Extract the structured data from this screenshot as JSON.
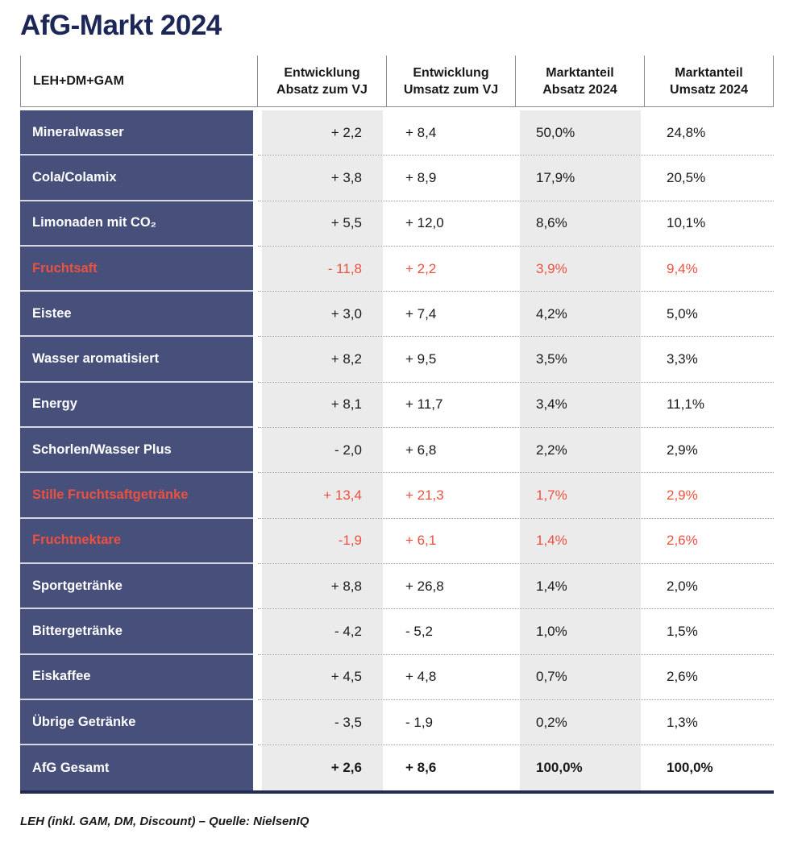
{
  "page_title": "AfG-Markt 2024",
  "source_note": "LEH (inkl. GAM, DM, Discount) – Quelle: NielsenIQ",
  "colors": {
    "title_navy": "#1d2757",
    "row_label_bg": "#474f7b",
    "highlight_red": "#ec5140",
    "stripe_gray": "#ebebeb",
    "text_dark": "#1a1a1a"
  },
  "headers": [
    {
      "lines": [
        "LEH+DM+GAM"
      ]
    },
    {
      "lines": [
        "Entwicklung",
        "Absatz zum VJ"
      ]
    },
    {
      "lines": [
        "Entwicklung",
        "Umsatz zum VJ"
      ]
    },
    {
      "lines": [
        "Marktanteil",
        "Absatz 2024"
      ]
    },
    {
      "lines": [
        "Marktanteil",
        "Umsatz 2024"
      ]
    }
  ],
  "rows": [
    {
      "label": "Mineralwasser",
      "absatz_vj": "+ 2,2",
      "umsatz_vj": "+ 8,4",
      "absatz_anteil": "50,0%",
      "umsatz_anteil": "24,8%",
      "highlight": false,
      "total": false
    },
    {
      "label": "Cola/Colamix",
      "absatz_vj": "+ 3,8",
      "umsatz_vj": "+ 8,9",
      "absatz_anteil": "17,9%",
      "umsatz_anteil": "20,5%",
      "highlight": false,
      "total": false
    },
    {
      "label": "Limonaden mit CO₂",
      "absatz_vj": "+ 5,5",
      "umsatz_vj": "+ 12,0",
      "absatz_anteil": "8,6%",
      "umsatz_anteil": "10,1%",
      "highlight": false,
      "total": false
    },
    {
      "label": "Fruchtsaft",
      "absatz_vj": "- 11,8",
      "umsatz_vj": "+ 2,2",
      "absatz_anteil": "3,9%",
      "umsatz_anteil": "9,4%",
      "highlight": true,
      "total": false
    },
    {
      "label": "Eistee",
      "absatz_vj": "+ 3,0",
      "umsatz_vj": "+ 7,4",
      "absatz_anteil": "4,2%",
      "umsatz_anteil": "5,0%",
      "highlight": false,
      "total": false
    },
    {
      "label": "Wasser aromatisiert",
      "absatz_vj": "+ 8,2",
      "umsatz_vj": "+ 9,5",
      "absatz_anteil": "3,5%",
      "umsatz_anteil": "3,3%",
      "highlight": false,
      "total": false
    },
    {
      "label": "Energy",
      "absatz_vj": "+ 8,1",
      "umsatz_vj": "+ 11,7",
      "absatz_anteil": "3,4%",
      "umsatz_anteil": "11,1%",
      "highlight": false,
      "total": false
    },
    {
      "label": "Schorlen/Wasser Plus",
      "absatz_vj": "- 2,0",
      "umsatz_vj": "+ 6,8",
      "absatz_anteil": "2,2%",
      "umsatz_anteil": "2,9%",
      "highlight": false,
      "total": false
    },
    {
      "label": "Stille Fruchtsaftgetränke",
      "absatz_vj": "+ 13,4",
      "umsatz_vj": "+ 21,3",
      "absatz_anteil": "1,7%",
      "umsatz_anteil": "2,9%",
      "highlight": true,
      "total": false
    },
    {
      "label": "Fruchtnektare",
      "absatz_vj": "-1,9",
      "umsatz_vj": "+ 6,1",
      "absatz_anteil": "1,4%",
      "umsatz_anteil": "2,6%",
      "highlight": true,
      "total": false
    },
    {
      "label": "Sportgetränke",
      "absatz_vj": "+ 8,8",
      "umsatz_vj": "+ 26,8",
      "absatz_anteil": "1,4%",
      "umsatz_anteil": "2,0%",
      "highlight": false,
      "total": false
    },
    {
      "label": "Bittergetränke",
      "absatz_vj": "- 4,2",
      "umsatz_vj": "- 5,2",
      "absatz_anteil": "1,0%",
      "umsatz_anteil": "1,5%",
      "highlight": false,
      "total": false
    },
    {
      "label": "Eiskaffee",
      "absatz_vj": "+ 4,5",
      "umsatz_vj": "+ 4,8",
      "absatz_anteil": "0,7%",
      "umsatz_anteil": "2,6%",
      "highlight": false,
      "total": false
    },
    {
      "label": "Übrige Getränke",
      "absatz_vj": "- 3,5",
      "umsatz_vj": "- 1,9",
      "absatz_anteil": "0,2%",
      "umsatz_anteil": "1,3%",
      "highlight": false,
      "total": false
    },
    {
      "label": "AfG Gesamt",
      "absatz_vj": "+ 2,6",
      "umsatz_vj": "+ 8,6",
      "absatz_anteil": "100,0%",
      "umsatz_anteil": "100,0%",
      "highlight": false,
      "total": true
    }
  ],
  "chart_data": {
    "type": "table",
    "title": "AfG-Markt 2024",
    "columns": [
      "LEH+DM+GAM",
      "Entwicklung Absatz zum VJ",
      "Entwicklung Umsatz zum VJ",
      "Marktanteil Absatz 2024",
      "Marktanteil Umsatz 2024"
    ],
    "rows": [
      {
        "kategorie": "Mineralwasser",
        "entwicklung_absatz_vj": 2.2,
        "entwicklung_umsatz_vj": 8.4,
        "marktanteil_absatz_2024_pct": 50.0,
        "marktanteil_umsatz_2024_pct": 24.8
      },
      {
        "kategorie": "Cola/Colamix",
        "entwicklung_absatz_vj": 3.8,
        "entwicklung_umsatz_vj": 8.9,
        "marktanteil_absatz_2024_pct": 17.9,
        "marktanteil_umsatz_2024_pct": 20.5
      },
      {
        "kategorie": "Limonaden mit CO₂",
        "entwicklung_absatz_vj": 5.5,
        "entwicklung_umsatz_vj": 12.0,
        "marktanteil_absatz_2024_pct": 8.6,
        "marktanteil_umsatz_2024_pct": 10.1
      },
      {
        "kategorie": "Fruchtsaft",
        "entwicklung_absatz_vj": -11.8,
        "entwicklung_umsatz_vj": 2.2,
        "marktanteil_absatz_2024_pct": 3.9,
        "marktanteil_umsatz_2024_pct": 9.4
      },
      {
        "kategorie": "Eistee",
        "entwicklung_absatz_vj": 3.0,
        "entwicklung_umsatz_vj": 7.4,
        "marktanteil_absatz_2024_pct": 4.2,
        "marktanteil_umsatz_2024_pct": 5.0
      },
      {
        "kategorie": "Wasser aromatisiert",
        "entwicklung_absatz_vj": 8.2,
        "entwicklung_umsatz_vj": 9.5,
        "marktanteil_absatz_2024_pct": 3.5,
        "marktanteil_umsatz_2024_pct": 3.3
      },
      {
        "kategorie": "Energy",
        "entwicklung_absatz_vj": 8.1,
        "entwicklung_umsatz_vj": 11.7,
        "marktanteil_absatz_2024_pct": 3.4,
        "marktanteil_umsatz_2024_pct": 11.1
      },
      {
        "kategorie": "Schorlen/Wasser Plus",
        "entwicklung_absatz_vj": -2.0,
        "entwicklung_umsatz_vj": 6.8,
        "marktanteil_absatz_2024_pct": 2.2,
        "marktanteil_umsatz_2024_pct": 2.9
      },
      {
        "kategorie": "Stille Fruchtsaftgetränke",
        "entwicklung_absatz_vj": 13.4,
        "entwicklung_umsatz_vj": 21.3,
        "marktanteil_absatz_2024_pct": 1.7,
        "marktanteil_umsatz_2024_pct": 2.9
      },
      {
        "kategorie": "Fruchtnektare",
        "entwicklung_absatz_vj": -1.9,
        "entwicklung_umsatz_vj": 6.1,
        "marktanteil_absatz_2024_pct": 1.4,
        "marktanteil_umsatz_2024_pct": 2.6
      },
      {
        "kategorie": "Sportgetränke",
        "entwicklung_absatz_vj": 8.8,
        "entwicklung_umsatz_vj": 26.8,
        "marktanteil_absatz_2024_pct": 1.4,
        "marktanteil_umsatz_2024_pct": 2.0
      },
      {
        "kategorie": "Bittergetränke",
        "entwicklung_absatz_vj": -4.2,
        "entwicklung_umsatz_vj": -5.2,
        "marktanteil_absatz_2024_pct": 1.0,
        "marktanteil_umsatz_2024_pct": 1.5
      },
      {
        "kategorie": "Eiskaffee",
        "entwicklung_absatz_vj": 4.5,
        "entwicklung_umsatz_vj": 4.8,
        "marktanteil_absatz_2024_pct": 0.7,
        "marktanteil_umsatz_2024_pct": 2.6
      },
      {
        "kategorie": "Übrige Getränke",
        "entwicklung_absatz_vj": -3.5,
        "entwicklung_umsatz_vj": -1.9,
        "marktanteil_absatz_2024_pct": 0.2,
        "marktanteil_umsatz_2024_pct": 1.3
      },
      {
        "kategorie": "AfG Gesamt",
        "entwicklung_absatz_vj": 2.6,
        "entwicklung_umsatz_vj": 8.6,
        "marktanteil_absatz_2024_pct": 100.0,
        "marktanteil_umsatz_2024_pct": 100.0
      }
    ],
    "legend_position": "none",
    "grid": "dotted row separators, alternating gray column stripes"
  }
}
